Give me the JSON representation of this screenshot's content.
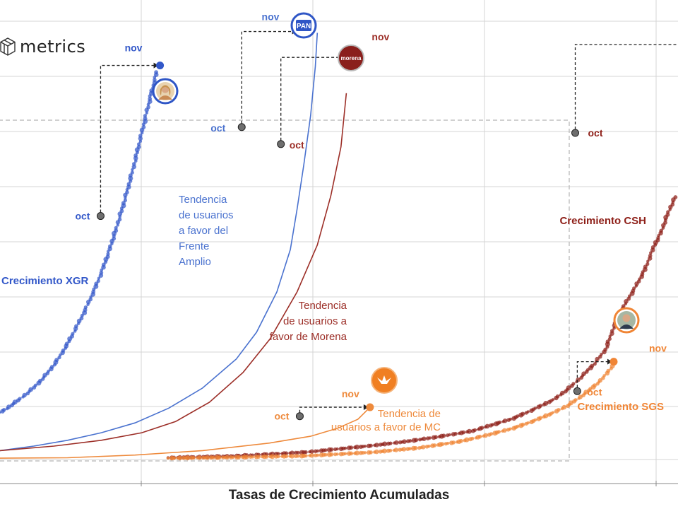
{
  "brand": {
    "name": "metrics",
    "logo_icon": "cube-icon"
  },
  "chart_data": {
    "type": "scatter",
    "title": "",
    "xlabel": "Tasas de Crecimiento Acumuladas",
    "ylabel": "",
    "grid": true,
    "xlim": [
      0,
      100
    ],
    "ylim": [
      0,
      100
    ],
    "colors": {
      "xgr": "#3358c9",
      "fa": "#4a72cf",
      "morena": "#9c2e27",
      "mc": "#ee8a3c",
      "csh": "#8e1f18",
      "sgs": "#f08535"
    },
    "series": [
      {
        "key": "xgr",
        "name": "Crecimiento XGR",
        "kind": "dots",
        "color": "#3358c9",
        "points": [
          [
            0,
            10.5
          ],
          [
            1,
            11.4
          ],
          [
            2,
            12.5
          ],
          [
            3,
            13.6
          ],
          [
            4,
            14.8
          ],
          [
            5,
            16.1
          ],
          [
            6,
            17.6
          ],
          [
            7,
            19.3
          ],
          [
            8,
            21.2
          ],
          [
            9,
            23.4
          ],
          [
            10,
            25.9
          ],
          [
            11,
            28.7
          ],
          [
            12,
            31.6
          ],
          [
            13,
            34.7
          ],
          [
            14,
            38.1
          ],
          [
            15,
            41.8
          ],
          [
            16,
            46.0
          ],
          [
            17,
            50.6
          ],
          [
            18,
            55.6
          ],
          [
            19,
            61.0
          ],
          [
            20,
            66.8
          ],
          [
            21,
            73.1
          ],
          [
            22,
            79.5
          ],
          [
            22.6,
            83.2
          ],
          [
            23.2,
            86.7
          ]
        ],
        "markers": [
          {
            "label": "oct",
            "x": 14.9,
            "y": 54.5
          },
          {
            "label": "nov",
            "x": 23.7,
            "y": 88.2
          }
        ]
      },
      {
        "key": "fa",
        "name": "Tendencia de usuarios a favor del Frente Amplio",
        "kind": "line",
        "color": "#4a72cf",
        "points": [
          [
            0,
            2.0
          ],
          [
            5,
            3.0
          ],
          [
            10,
            4.3
          ],
          [
            15,
            6.0
          ],
          [
            20,
            8.2
          ],
          [
            25,
            11.5
          ],
          [
            30,
            16.0
          ],
          [
            35,
            22.5
          ],
          [
            38,
            28.5
          ],
          [
            41,
            37.5
          ],
          [
            43,
            47.0
          ],
          [
            44,
            56.0
          ],
          [
            45,
            66.0
          ],
          [
            46,
            77.0
          ],
          [
            46.7,
            88.0
          ],
          [
            47,
            95.5
          ]
        ],
        "markers": [
          {
            "label": "oct",
            "x": 35.8,
            "y": 74.4
          },
          {
            "label": "nov",
            "x": 44.2,
            "y": 95.8
          }
        ]
      },
      {
        "key": "morena",
        "name": "Tendencia de usuarios a favor de Morena",
        "kind": "line",
        "color": "#9c2e27",
        "points": [
          [
            0,
            2.0
          ],
          [
            8,
            3.0
          ],
          [
            15,
            4.3
          ],
          [
            21,
            6.0
          ],
          [
            26,
            8.5
          ],
          [
            31,
            12.8
          ],
          [
            36,
            19.5
          ],
          [
            40,
            27.0
          ],
          [
            44,
            37.5
          ],
          [
            47,
            48.0
          ],
          [
            49,
            59.0
          ],
          [
            50.5,
            70.0
          ],
          [
            51.3,
            82.0
          ]
        ],
        "markers": [
          {
            "label": "oct",
            "x": 41.6,
            "y": 70.6
          },
          {
            "label": "nov",
            "x": 51.3,
            "y": 90.0
          }
        ]
      },
      {
        "key": "mc",
        "name": "Tendencia de usuarios a favor de MC",
        "kind": "line",
        "color": "#ee8a3c",
        "points": [
          [
            0,
            0.3
          ],
          [
            10,
            0.4
          ],
          [
            20,
            1.0
          ],
          [
            30,
            2.0
          ],
          [
            40,
            3.7
          ],
          [
            46,
            5.2
          ],
          [
            50,
            7.0
          ],
          [
            53,
            9.0
          ],
          [
            54.8,
            11.7
          ]
        ],
        "markers": [
          {
            "label": "oct",
            "x": 44.4,
            "y": 9.7
          },
          {
            "label": "nov",
            "x": 54.8,
            "y": 11.7
          }
        ]
      },
      {
        "key": "csh",
        "name": "Crecimiento CSH",
        "kind": "dots",
        "color": "#8e1f18",
        "points": [
          [
            25,
            0.4
          ],
          [
            35,
            0.8
          ],
          [
            45,
            1.6
          ],
          [
            55,
            3.1
          ],
          [
            60,
            4.0
          ],
          [
            65,
            5.1
          ],
          [
            70,
            6.4
          ],
          [
            73,
            7.8
          ],
          [
            76,
            9.2
          ],
          [
            79,
            11.2
          ],
          [
            82,
            13.4
          ],
          [
            84,
            15.6
          ],
          [
            86,
            18.3
          ],
          [
            88,
            21.4
          ],
          [
            89.7,
            24.6
          ],
          [
            91,
            30.0
          ],
          [
            92.8,
            35.4
          ],
          [
            94,
            38.3
          ],
          [
            95.5,
            42.5
          ],
          [
            96.8,
            47.5
          ],
          [
            98,
            51.2
          ],
          [
            99,
            55.4
          ],
          [
            100,
            58.7
          ]
        ],
        "markers": [
          {
            "label": "oct",
            "x": 85.2,
            "y": 73.1
          }
        ]
      },
      {
        "key": "sgs",
        "name": "Crecimiento SGS",
        "kind": "dots",
        "color": "#f08535",
        "points": [
          [
            25,
            0.3
          ],
          [
            35,
            0.5
          ],
          [
            45,
            0.8
          ],
          [
            55,
            1.6
          ],
          [
            62,
            2.6
          ],
          [
            68,
            4.0
          ],
          [
            72,
            5.4
          ],
          [
            76,
            7.0
          ],
          [
            79,
            8.6
          ],
          [
            82,
            10.5
          ],
          [
            84,
            12.0
          ],
          [
            86,
            14.0
          ],
          [
            87.8,
            16.2
          ],
          [
            89,
            17.7
          ],
          [
            90.7,
            20.9
          ]
        ],
        "markers": [
          {
            "label": "oct",
            "x": 85.5,
            "y": 15.3
          },
          {
            "label": "nov",
            "x": 90.9,
            "y": 21.9
          }
        ]
      }
    ],
    "labels": [
      {
        "series": "xgr",
        "text": "Crecimiento XGR",
        "bold": true
      },
      {
        "series": "fa",
        "lines": [
          "Tendencia",
          "de usuarios",
          "a favor del",
          "Frente",
          "Amplio"
        ]
      },
      {
        "series": "morena",
        "lines": [
          "Tendencia",
          "de usuarios a",
          "favor de Morena"
        ]
      },
      {
        "series": "mc",
        "lines": [
          "Tendencia de",
          "usuarios a favor de MC"
        ]
      },
      {
        "series": "csh",
        "text": "Crecimiento CSH",
        "bold": true
      },
      {
        "series": "sgs",
        "text": "Crecimiento SGS",
        "bold": true
      }
    ],
    "badges": [
      {
        "series": "xgr",
        "icon": "candidate-photo-icon"
      },
      {
        "series": "fa",
        "icon": "pan-logo-icon",
        "text": "PAN"
      },
      {
        "series": "morena",
        "icon": "morena-logo-icon",
        "text": "morena"
      },
      {
        "series": "mc",
        "icon": "mc-logo-icon"
      },
      {
        "series": "sgs",
        "icon": "candidate-photo-icon"
      }
    ]
  }
}
